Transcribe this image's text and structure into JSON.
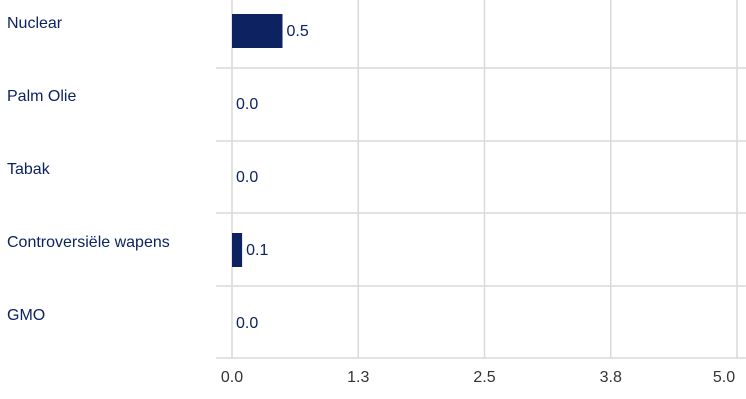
{
  "chart_data": {
    "type": "bar",
    "orientation": "horizontal",
    "categories": [
      "Nuclear",
      "Palm Olie",
      "Tabak",
      "Controversiële wapens",
      "GMO"
    ],
    "values": [
      0.5,
      0.0,
      0.0,
      0.1,
      0.0
    ],
    "value_labels": [
      "0.5",
      "0.0",
      "0.0",
      "0.1",
      "0.0"
    ],
    "xlim": [
      0,
      5
    ],
    "x_ticks": [
      0,
      1.25,
      2.5,
      3.75,
      5
    ],
    "x_tick_labels": [
      "0.0",
      "1.3",
      "2.5",
      "3.8",
      "5.0"
    ],
    "grid": true,
    "colors": {
      "bar": "#0d2260",
      "text": "#0d2260",
      "grid": "#d9d9d9",
      "tick_text": "#333333"
    }
  }
}
